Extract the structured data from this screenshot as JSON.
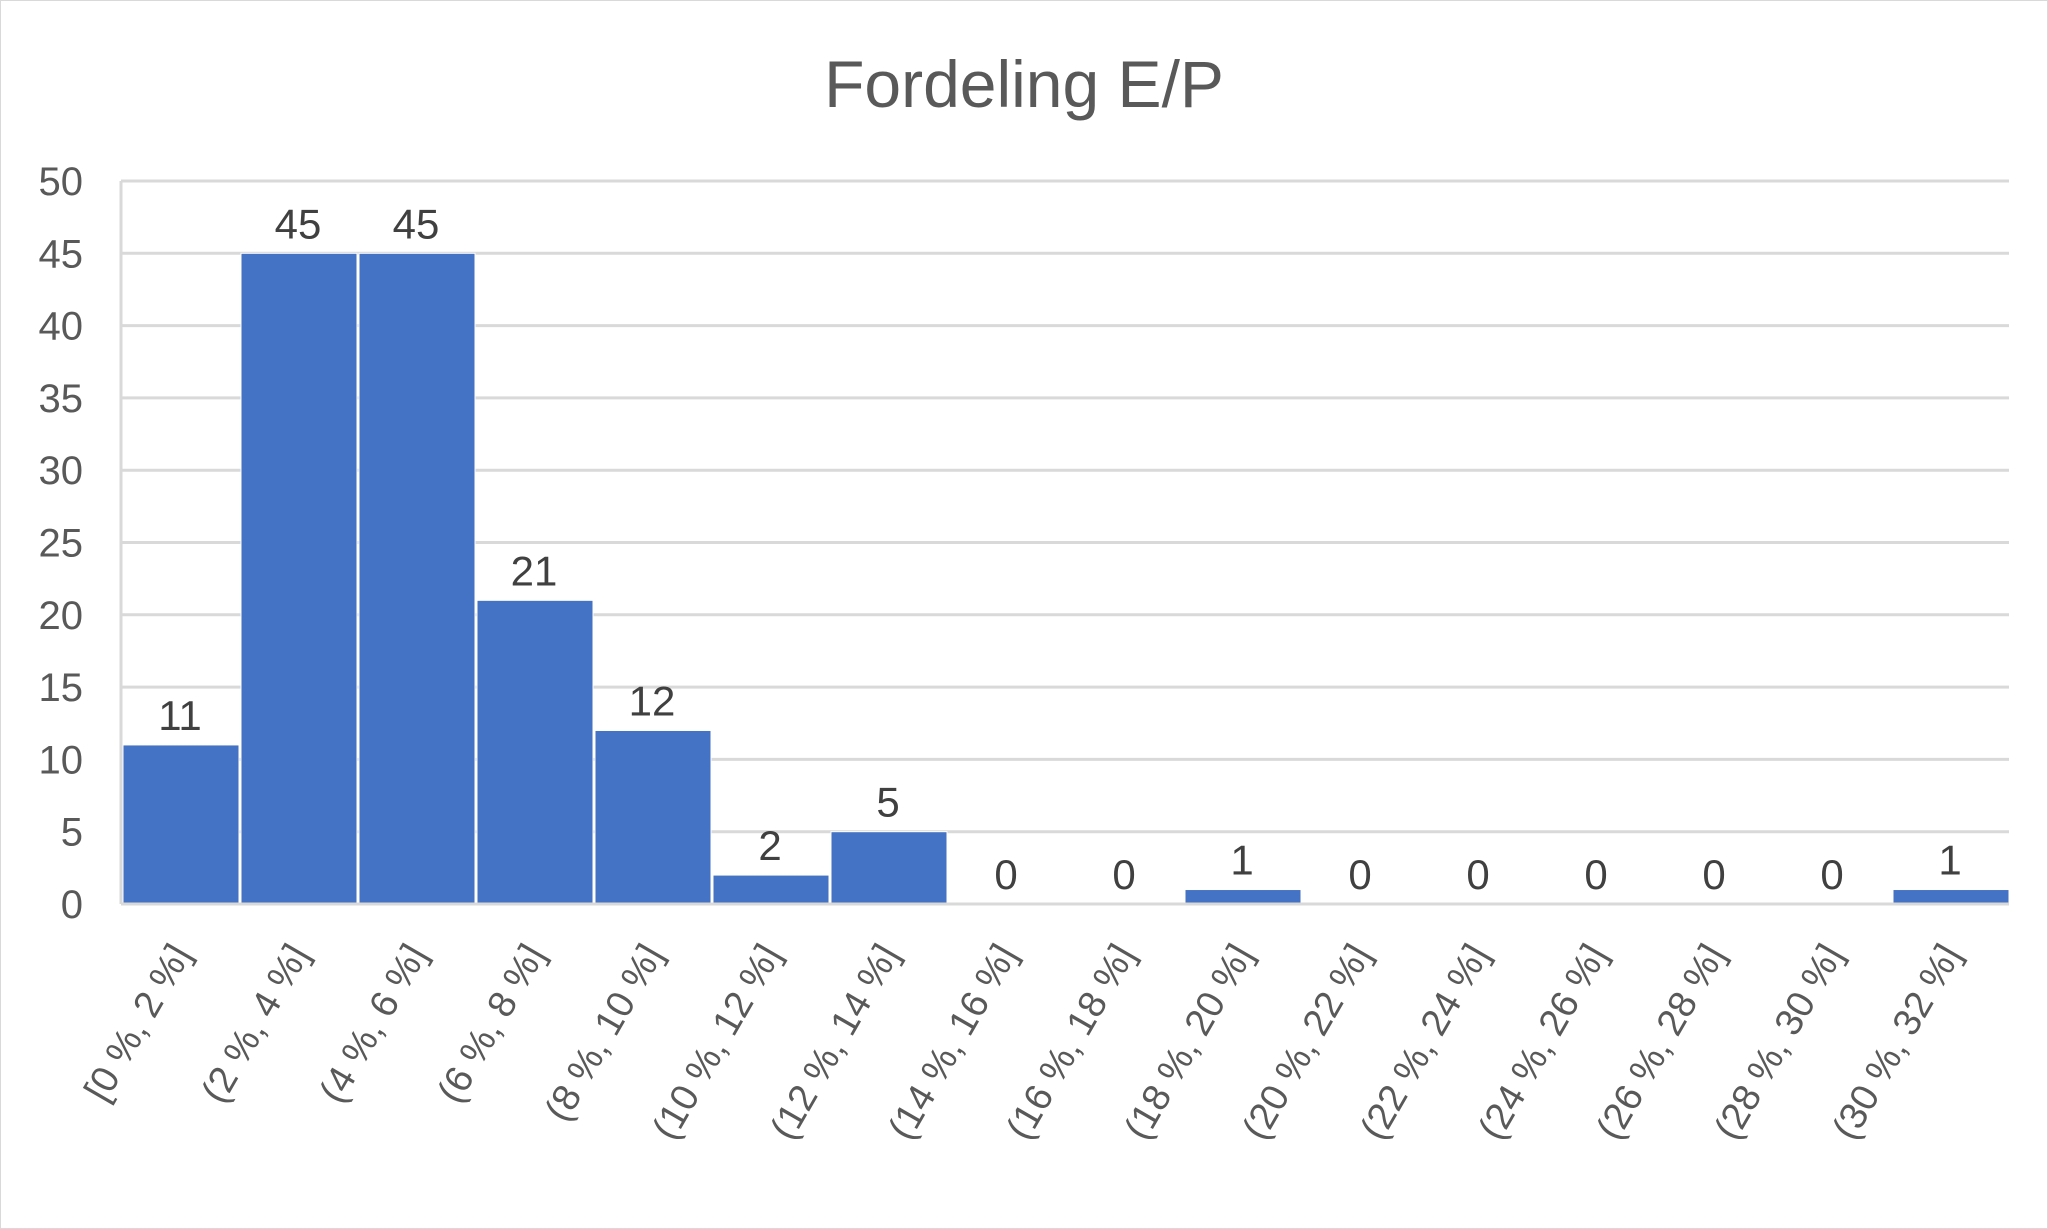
{
  "chart_data": {
    "type": "bar",
    "title": "Fordeling E/P",
    "xlabel": "",
    "ylabel": "",
    "ylim": [
      0,
      50
    ],
    "yticks": [
      0,
      5,
      10,
      15,
      20,
      25,
      30,
      35,
      40,
      45,
      50
    ],
    "grid": true,
    "legend": "none",
    "bar_color": "#4472C4",
    "categories": [
      "[0 %, 2 %]",
      "(2 %, 4 %]",
      "(4 %, 6 %]",
      "(6 %, 8 %]",
      "(8 %, 10 %]",
      "(10 %, 12 %]",
      "(12 %, 14 %]",
      "(14 %, 16 %]",
      "(16 %, 18 %]",
      "(18 %, 20 %]",
      "(20 %, 22 %]",
      "(22 %, 24 %]",
      "(24 %, 26 %]",
      "(26 %, 28 %]",
      "(28 %, 30 %]",
      "(30 %, 32 %]"
    ],
    "values": [
      11,
      45,
      45,
      21,
      12,
      2,
      5,
      0,
      0,
      1,
      0,
      0,
      0,
      0,
      0,
      1
    ]
  }
}
